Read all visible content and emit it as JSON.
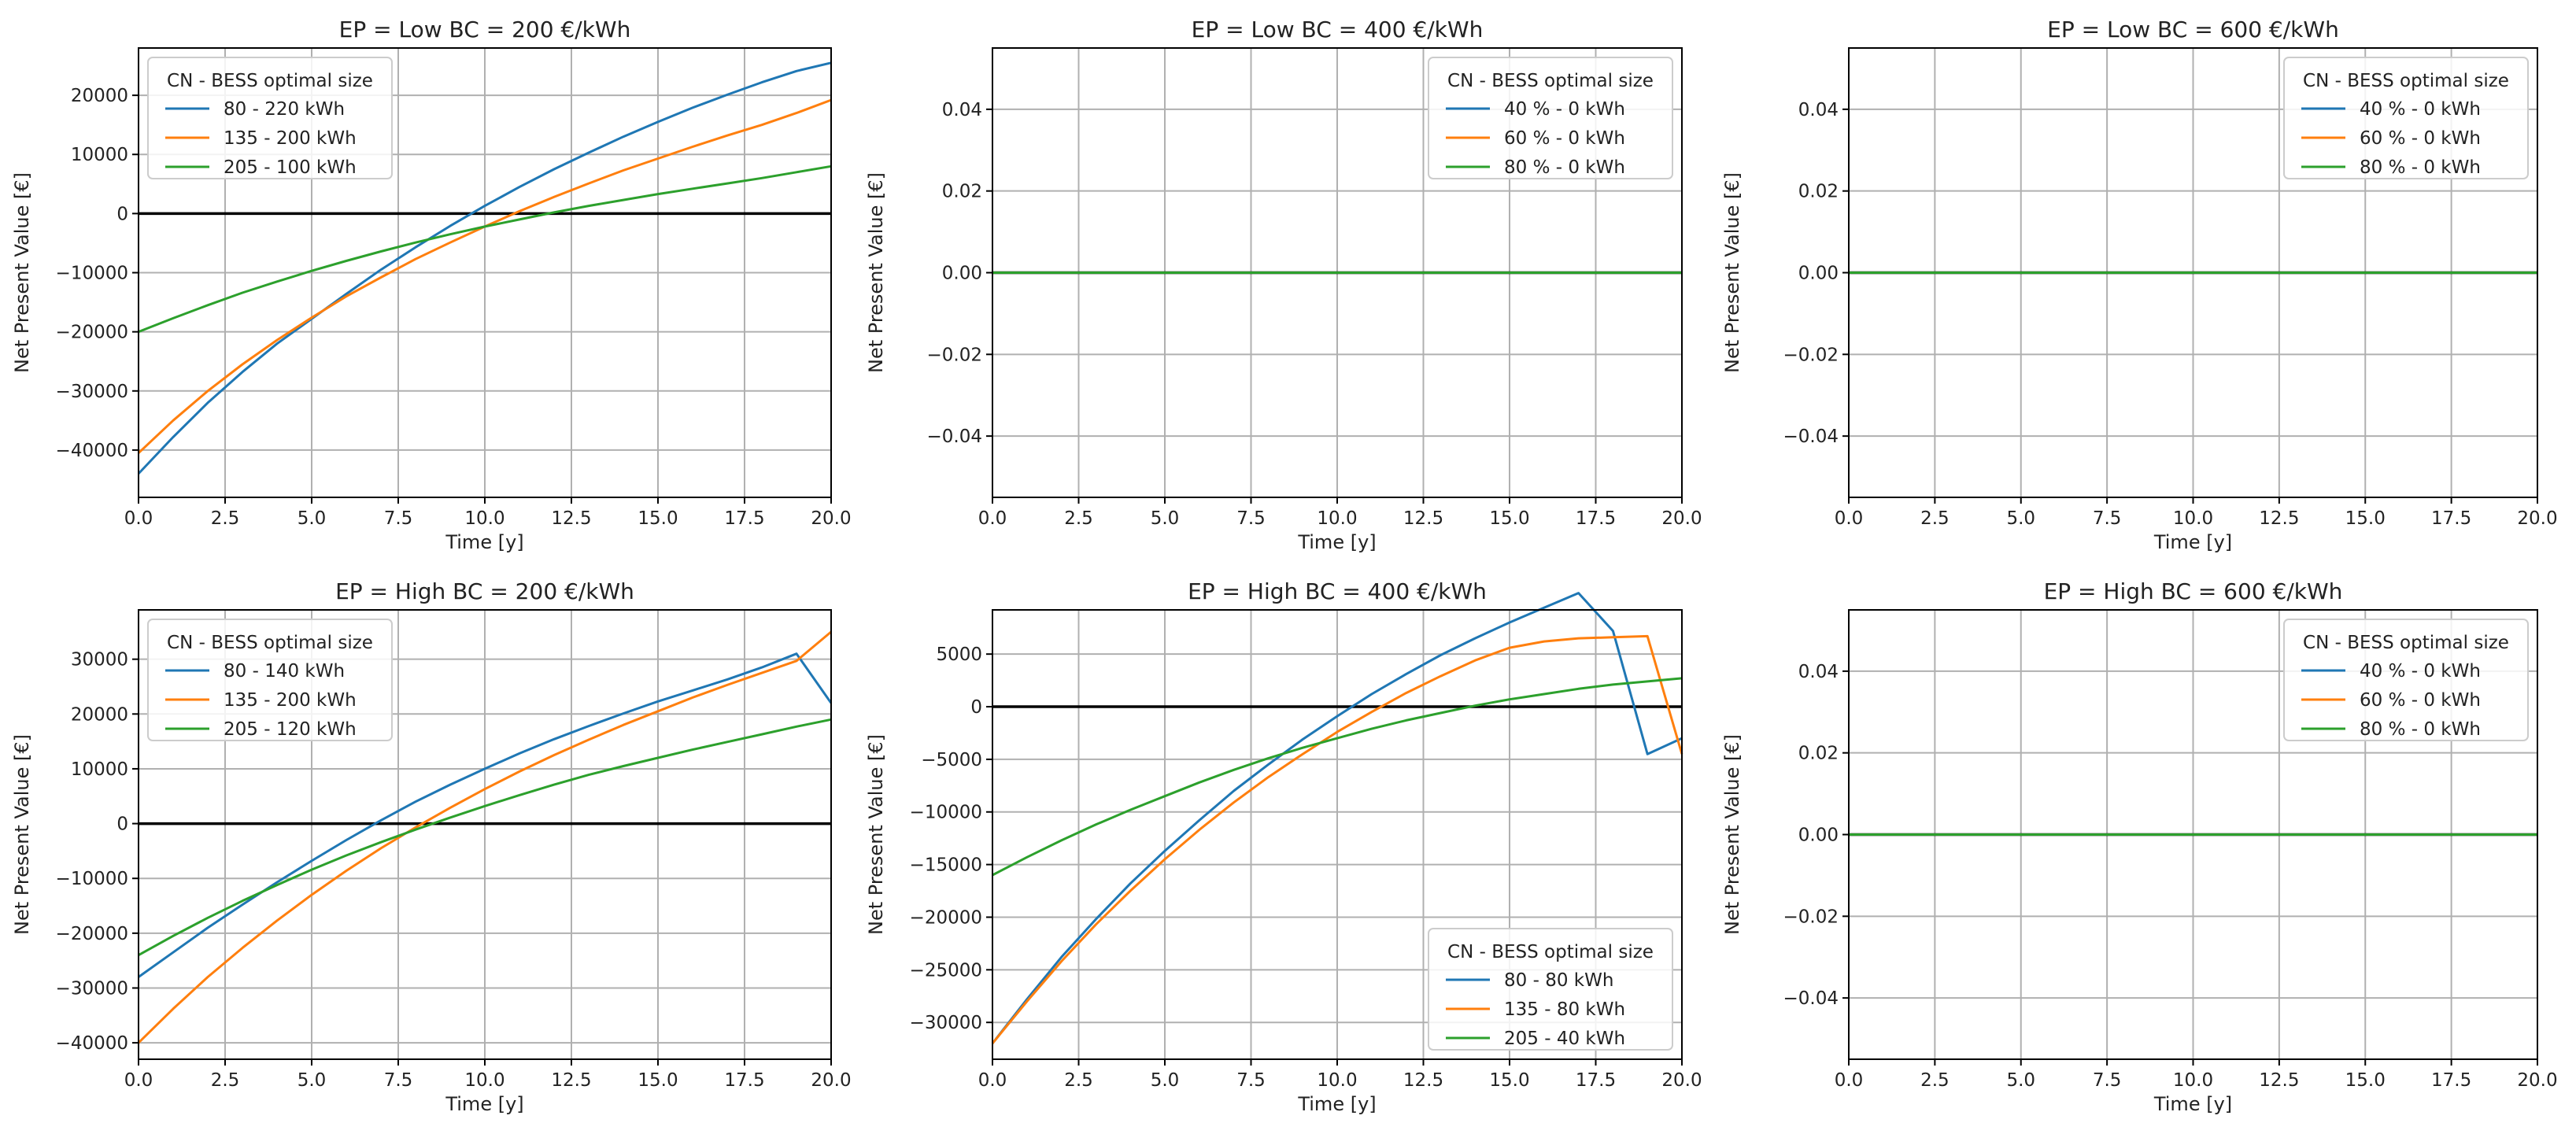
{
  "chart_data": [
    {
      "type": "line",
      "title": "EP = Low BC = 200 €/kWh",
      "xlabel": "Time [y]",
      "ylabel": "Net Present Value [€]",
      "xlim": [
        0,
        20
      ],
      "ylim": [
        -48000,
        28000
      ],
      "xticks": [
        0,
        2.5,
        5,
        7.5,
        10,
        12.5,
        15,
        17.5,
        20
      ],
      "xtick_labels": [
        "0.0",
        "2.5",
        "5.0",
        "7.5",
        "10.0",
        "12.5",
        "15.0",
        "17.5",
        "20.0"
      ],
      "yticks": [
        -40000,
        -30000,
        -20000,
        -10000,
        0,
        10000,
        20000
      ],
      "ytick_labels": [
        "−40000",
        "−30000",
        "−20000",
        "−10000",
        "0",
        "10000",
        "20000"
      ],
      "grid": true,
      "zero_line": true,
      "legend_title": "CN - BESS optimal size",
      "legend_position": "upper left",
      "x": [
        0,
        1,
        2,
        3,
        4,
        5,
        6,
        7,
        8,
        9,
        10,
        11,
        12,
        13,
        14,
        15,
        16,
        17,
        18,
        19,
        20
      ],
      "series": [
        {
          "name": "80 - 220 kWh",
          "color": "#1f77b4",
          "values": [
            -44000,
            -37800,
            -32000,
            -26800,
            -22000,
            -17800,
            -13600,
            -9500,
            -5700,
            -2100,
            1300,
            4500,
            7500,
            10300,
            13000,
            15500,
            17900,
            20100,
            22200,
            24100,
            25500
          ]
        },
        {
          "name": "135 - 200 kWh",
          "color": "#ff7f0e",
          "values": [
            -40500,
            -35000,
            -30000,
            -25500,
            -21400,
            -17600,
            -14000,
            -10800,
            -7700,
            -4900,
            -2200,
            400,
            2800,
            5100,
            7300,
            9300,
            11300,
            13200,
            15000,
            17000,
            19200
          ]
        },
        {
          "name": "205 - 100 kWh",
          "color": "#2ca02c",
          "values": [
            -20000,
            -17700,
            -15500,
            -13400,
            -11500,
            -9700,
            -8000,
            -6400,
            -4900,
            -3500,
            -2200,
            -1000,
            200,
            1300,
            2300,
            3300,
            4200,
            5100,
            6000,
            7000,
            8000
          ]
        }
      ]
    },
    {
      "type": "line",
      "title": "EP = Low BC = 400 €/kWh",
      "xlabel": "Time [y]",
      "ylabel": "Net Present Value [€]",
      "xlim": [
        0,
        20
      ],
      "ylim": [
        -0.055,
        0.055
      ],
      "xticks": [
        0,
        2.5,
        5,
        7.5,
        10,
        12.5,
        15,
        17.5,
        20
      ],
      "xtick_labels": [
        "0.0",
        "2.5",
        "5.0",
        "7.5",
        "10.0",
        "12.5",
        "15.0",
        "17.5",
        "20.0"
      ],
      "yticks": [
        -0.04,
        -0.02,
        0,
        0.02,
        0.04
      ],
      "ytick_labels": [
        "−0.04",
        "−0.02",
        "0.00",
        "0.02",
        "0.04"
      ],
      "grid": true,
      "zero_line": true,
      "legend_title": "CN - BESS optimal size",
      "legend_position": "upper right",
      "x": [
        0,
        20
      ],
      "series": [
        {
          "name": "40 % - 0 kWh",
          "color": "#1f77b4",
          "values": [
            0,
            0
          ]
        },
        {
          "name": "60 % - 0 kWh",
          "color": "#ff7f0e",
          "values": [
            0,
            0
          ]
        },
        {
          "name": "80 % - 0 kWh",
          "color": "#2ca02c",
          "values": [
            0,
            0
          ]
        }
      ]
    },
    {
      "type": "line",
      "title": "EP = Low BC = 600 €/kWh",
      "xlabel": "Time [y]",
      "ylabel": "Net Present Value [€]",
      "xlim": [
        0,
        20
      ],
      "ylim": [
        -0.055,
        0.055
      ],
      "xticks": [
        0,
        2.5,
        5,
        7.5,
        10,
        12.5,
        15,
        17.5,
        20
      ],
      "xtick_labels": [
        "0.0",
        "2.5",
        "5.0",
        "7.5",
        "10.0",
        "12.5",
        "15.0",
        "17.5",
        "20.0"
      ],
      "yticks": [
        -0.04,
        -0.02,
        0,
        0.02,
        0.04
      ],
      "ytick_labels": [
        "−0.04",
        "−0.02",
        "0.00",
        "0.02",
        "0.04"
      ],
      "grid": true,
      "zero_line": true,
      "legend_title": "CN - BESS optimal size",
      "legend_position": "upper right",
      "x": [
        0,
        20
      ],
      "series": [
        {
          "name": "40 % - 0 kWh",
          "color": "#1f77b4",
          "values": [
            0,
            0
          ]
        },
        {
          "name": "60 % - 0 kWh",
          "color": "#ff7f0e",
          "values": [
            0,
            0
          ]
        },
        {
          "name": "80 % - 0 kWh",
          "color": "#2ca02c",
          "values": [
            0,
            0
          ]
        }
      ]
    },
    {
      "type": "line",
      "title": "EP = High BC = 200 €/kWh",
      "xlabel": "Time [y]",
      "ylabel": "Net Present Value [€]",
      "xlim": [
        0,
        20
      ],
      "ylim": [
        -43000,
        39000
      ],
      "xticks": [
        0,
        2.5,
        5,
        7.5,
        10,
        12.5,
        15,
        17.5,
        20
      ],
      "xtick_labels": [
        "0.0",
        "2.5",
        "5.0",
        "7.5",
        "10.0",
        "12.5",
        "15.0",
        "17.5",
        "20.0"
      ],
      "yticks": [
        -40000,
        -30000,
        -20000,
        -10000,
        0,
        10000,
        20000,
        30000
      ],
      "ytick_labels": [
        "−40000",
        "−30000",
        "−20000",
        "−10000",
        "0",
        "10000",
        "20000",
        "30000"
      ],
      "grid": true,
      "zero_line": true,
      "legend_title": "CN - BESS optimal size",
      "legend_position": "upper left",
      "x": [
        0,
        1,
        2,
        3,
        4,
        5,
        6,
        7,
        8,
        9,
        10,
        11,
        12,
        13,
        14,
        15,
        16,
        17,
        18,
        19,
        20
      ],
      "series": [
        {
          "name": "80 - 140 kWh",
          "color": "#1f77b4",
          "values": [
            -28000,
            -23500,
            -19000,
            -14800,
            -10700,
            -6800,
            -3000,
            600,
            4000,
            7100,
            10000,
            12800,
            15400,
            17800,
            20100,
            22300,
            24300,
            26300,
            28500,
            31000,
            22000
          ]
        },
        {
          "name": "135 - 200 kWh",
          "color": "#ff7f0e",
          "values": [
            -40000,
            -33800,
            -28000,
            -22700,
            -17700,
            -13000,
            -8600,
            -4500,
            -700,
            2900,
            6300,
            9500,
            12500,
            15300,
            18000,
            20500,
            23000,
            25300,
            27500,
            29700,
            35000
          ]
        },
        {
          "name": "205 - 120 kWh",
          "color": "#2ca02c",
          "values": [
            -24000,
            -20500,
            -17200,
            -14100,
            -11200,
            -8400,
            -5800,
            -3400,
            -1100,
            1100,
            3200,
            5200,
            7100,
            8900,
            10500,
            12000,
            13500,
            14900,
            16300,
            17700,
            19000
          ]
        }
      ]
    },
    {
      "type": "line",
      "title": "EP = High BC = 400 €/kWh",
      "xlabel": "Time [y]",
      "ylabel": "Net Present Value [€]",
      "xlim": [
        0,
        20
      ],
      "ylim": [
        -33500,
        9200
      ],
      "xticks": [
        0,
        2.5,
        5,
        7.5,
        10,
        12.5,
        15,
        17.5,
        20
      ],
      "xtick_labels": [
        "0.0",
        "2.5",
        "5.0",
        "7.5",
        "10.0",
        "12.5",
        "15.0",
        "17.5",
        "20.0"
      ],
      "yticks": [
        -30000,
        -25000,
        -20000,
        -15000,
        -10000,
        -5000,
        0,
        5000
      ],
      "ytick_labels": [
        "−30000",
        "−25000",
        "−20000",
        "−15000",
        "−10000",
        "−5000",
        "0",
        "5000"
      ],
      "grid": true,
      "zero_line": true,
      "legend_title": "CN - BESS optimal size",
      "legend_position": "lower right",
      "x": [
        0,
        1,
        2,
        3,
        4,
        5,
        6,
        7,
        8,
        9,
        10,
        11,
        12,
        13,
        14,
        15,
        16,
        17,
        18,
        19,
        20
      ],
      "series": [
        {
          "name": "80 - 80 kWh",
          "color": "#1f77b4",
          "values": [
            -32000,
            -27800,
            -23800,
            -20200,
            -16800,
            -13700,
            -10800,
            -8000,
            -5500,
            -3100,
            -900,
            1200,
            3100,
            4900,
            6500,
            8000,
            9400,
            10800,
            7200,
            -4500,
            -3000
          ]
        },
        {
          "name": "135 - 80 kWh",
          "color": "#ff7f0e",
          "values": [
            -32000,
            -28000,
            -24200,
            -20700,
            -17500,
            -14500,
            -11700,
            -9100,
            -6700,
            -4500,
            -2400,
            -500,
            1300,
            2900,
            4400,
            5600,
            6200,
            6500,
            6600,
            6700,
            -4500
          ]
        },
        {
          "name": "205 - 40 kWh",
          "color": "#2ca02c",
          "values": [
            -16000,
            -14300,
            -12700,
            -11200,
            -9800,
            -8500,
            -7200,
            -6000,
            -4900,
            -3900,
            -3000,
            -2100,
            -1300,
            -600,
            100,
            700,
            1200,
            1700,
            2100,
            2400,
            2700
          ]
        }
      ]
    },
    {
      "type": "line",
      "title": "EP = High BC = 600 €/kWh",
      "xlabel": "Time [y]",
      "ylabel": "Net Present Value [€]",
      "xlim": [
        0,
        20
      ],
      "ylim": [
        -0.055,
        0.055
      ],
      "xticks": [
        0,
        2.5,
        5,
        7.5,
        10,
        12.5,
        15,
        17.5,
        20
      ],
      "xtick_labels": [
        "0.0",
        "2.5",
        "5.0",
        "7.5",
        "10.0",
        "12.5",
        "15.0",
        "17.5",
        "20.0"
      ],
      "yticks": [
        -0.04,
        -0.02,
        0,
        0.02,
        0.04
      ],
      "ytick_labels": [
        "−0.04",
        "−0.02",
        "0.00",
        "0.02",
        "0.04"
      ],
      "grid": true,
      "zero_line": true,
      "legend_title": "CN - BESS optimal size",
      "legend_position": "upper right",
      "x": [
        0,
        20
      ],
      "series": [
        {
          "name": "40 % - 0 kWh",
          "color": "#1f77b4",
          "values": [
            0,
            0
          ]
        },
        {
          "name": "60 % - 0 kWh",
          "color": "#ff7f0e",
          "values": [
            0,
            0
          ]
        },
        {
          "name": "80 % - 0 kWh",
          "color": "#2ca02c",
          "values": [
            0,
            0
          ]
        }
      ]
    }
  ]
}
